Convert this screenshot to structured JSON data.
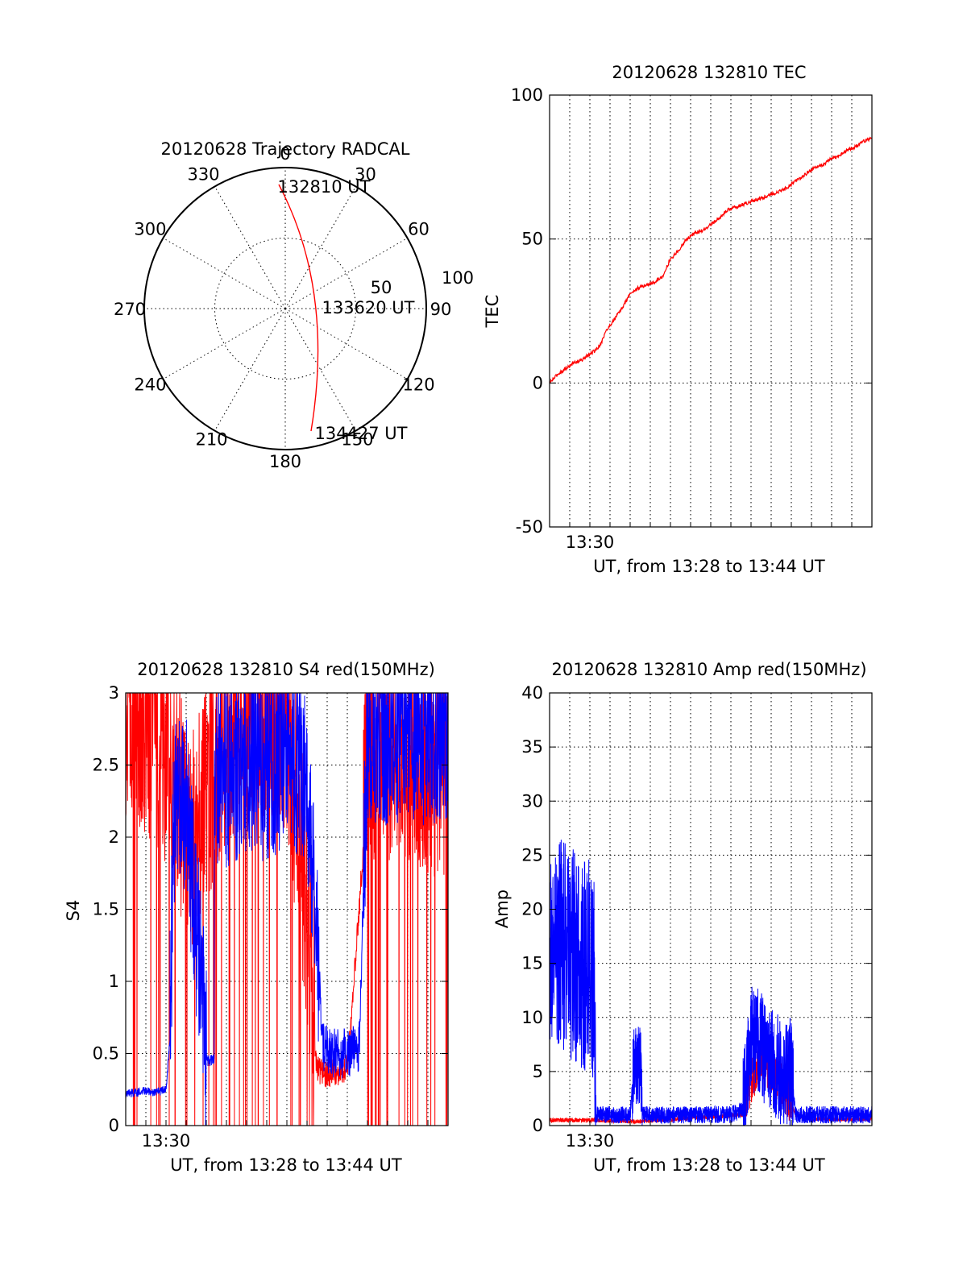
{
  "colors": {
    "red": "#ff0000",
    "blue": "#0000ff",
    "axis": "#000000",
    "grid": "#000000",
    "background": "#ffffff"
  },
  "chart_data": [
    {
      "id": "polar",
      "type": "scatter",
      "title": "20120628 Trajectory RADCAL",
      "projection": "polar",
      "azimuth_labels": [
        "0",
        "30",
        "60",
        "90",
        "120",
        "150",
        "180",
        "210",
        "240",
        "270",
        "300",
        "330"
      ],
      "radial_labels": [
        "50",
        "100"
      ],
      "radial_max": 100,
      "grid": true,
      "series": [
        {
          "color": "red",
          "points_az_el": [
            [
              352,
              82
            ],
            [
              356,
              76
            ],
            [
              2,
              68
            ],
            [
              8,
              60
            ],
            [
              15,
              52
            ],
            [
              24,
              44
            ],
            [
              36,
              38
            ],
            [
              52,
              33
            ],
            [
              70,
              30
            ],
            [
              88,
              30
            ],
            [
              106,
              33
            ],
            [
              120,
              38
            ],
            [
              132,
              44
            ],
            [
              142,
              52
            ],
            [
              150,
              60
            ],
            [
              156,
              67
            ],
            [
              161,
              73
            ],
            [
              164,
              78
            ]
          ]
        }
      ],
      "annotations": [
        {
          "text": "132810 UT",
          "az": 352,
          "el": 82
        },
        {
          "text": "133620 UT",
          "az": 88,
          "el": 30
        },
        {
          "text": "134427 UT",
          "az": 164,
          "el": 78
        }
      ]
    },
    {
      "id": "tec",
      "type": "line",
      "title": "20120628 132810 TEC",
      "xlabel": "UT, from 13:28 to 13:44 UT",
      "ylabel": "TEC",
      "xlim": [
        0,
        16
      ],
      "ylim": [
        -50,
        100
      ],
      "yticks": [
        -50,
        0,
        50,
        100
      ],
      "xtick_labels": [
        {
          "x": 2,
          "label": "13:30"
        }
      ],
      "grid": true,
      "series": [
        {
          "color": "red",
          "x": [
            0,
            0.4,
            0.8,
            1.2,
            1.6,
            2.0,
            2.2,
            2.5,
            2.8,
            3.2,
            3.6,
            4.0,
            4.4,
            4.8,
            5.2,
            5.6,
            6.0,
            6.4,
            6.8,
            7.2,
            7.6,
            8.0,
            8.4,
            8.8,
            9.2,
            9.6,
            10.0,
            10.4,
            10.8,
            11.2,
            11.6,
            12.0,
            12.4,
            12.8,
            13.2,
            13.6,
            14.0,
            14.4,
            14.8,
            15.2,
            15.6,
            16.0
          ],
          "y": [
            0,
            3,
            5,
            7,
            8,
            10,
            11,
            13,
            18,
            22,
            26,
            31,
            33,
            34,
            35,
            37,
            43,
            46,
            50,
            52,
            53,
            55,
            57,
            60,
            61,
            62,
            63,
            64,
            65,
            66,
            67,
            69,
            71,
            73,
            75,
            76,
            78,
            79,
            81,
            82,
            84,
            85
          ]
        }
      ]
    },
    {
      "id": "s4",
      "type": "line",
      "title": "20120628 132810 S4 red(150MHz)",
      "xlabel": "UT, from 13:28 to 13:44 UT",
      "ylabel": "S4",
      "xlim": [
        0,
        16
      ],
      "ylim": [
        0,
        3
      ],
      "yticks": [
        0,
        0.5,
        1,
        1.5,
        2,
        2.5,
        3
      ],
      "ytick_labels": [
        "0",
        "0.5",
        "1",
        "1.5",
        "2",
        "2.5",
        "3"
      ],
      "xtick_labels": [
        {
          "x": 2,
          "label": "13:30"
        }
      ],
      "grid": true,
      "series": [
        {
          "color": "red",
          "x": [
            0,
            1.0,
            2.0,
            2.5,
            3.0,
            4.0,
            5.0,
            6.0,
            7.0,
            8.0,
            9.0,
            9.5,
            10.0,
            11.0,
            12.0,
            13.0,
            14.0,
            15.0,
            16.0
          ],
          "y": [
            2.6,
            2.5,
            2.3,
            2.2,
            1.6,
            2.0,
            2.4,
            2.6,
            2.6,
            2.5,
            1.2,
            0.4,
            0.35,
            0.4,
            2.3,
            2.3,
            2.2,
            2.2,
            2.2
          ]
        },
        {
          "color": "blue",
          "x": [
            0,
            0.5,
            1.0,
            1.5,
            2.0,
            2.2,
            2.4,
            3.0,
            4.0,
            4.5,
            5.0,
            6.0,
            7.0,
            8.0,
            9.0,
            9.8,
            10.2,
            11.0,
            11.6,
            12.0,
            13.0,
            14.0,
            15.0,
            16.0
          ],
          "y": [
            0.22,
            0.23,
            0.24,
            0.23,
            0.25,
            0.6,
            2.0,
            2.1,
            0.45,
            2.3,
            2.3,
            2.4,
            2.3,
            2.5,
            2.3,
            0.55,
            0.5,
            0.5,
            0.55,
            2.6,
            2.6,
            2.6,
            2.6,
            2.6
          ]
        }
      ]
    },
    {
      "id": "amp",
      "type": "line",
      "title": "20120628 132810 Amp red(150MHz)",
      "xlabel": "UT, from 13:28 to 13:44 UT",
      "ylabel": "Amp",
      "xlim": [
        0,
        16
      ],
      "ylim": [
        0,
        40
      ],
      "yticks": [
        0,
        5,
        10,
        15,
        20,
        25,
        30,
        35,
        40
      ],
      "xtick_labels": [
        {
          "x": 2,
          "label": "13:30"
        }
      ],
      "grid": true,
      "series": [
        {
          "color": "red",
          "x": [
            0,
            1.0,
            2.0,
            2.2,
            4.0,
            4.5,
            9.6,
            10.0,
            10.5,
            11.0,
            11.5,
            12.0,
            12.2,
            13.0,
            16.0
          ],
          "y": [
            0.5,
            0.5,
            0.5,
            0.5,
            0.4,
            0.4,
            1.0,
            4.0,
            6.0,
            5.0,
            4.0,
            2.0,
            1.0,
            0.6,
            0.6
          ]
        },
        {
          "color": "blue",
          "x": [
            0,
            0.5,
            1.0,
            1.5,
            2.0,
            2.2,
            2.3,
            3.0,
            4.0,
            4.2,
            4.5,
            4.6,
            5.0,
            6.0,
            7.0,
            8.0,
            9.0,
            9.6,
            10.0,
            10.5,
            11.0,
            11.5,
            12.0,
            12.2,
            13.0,
            14.0,
            15.0,
            16.0
          ],
          "y": [
            16,
            17,
            16,
            15,
            15,
            14,
            1.0,
            1.0,
            1.0,
            6.0,
            6.0,
            1.0,
            1.0,
            1.0,
            1.0,
            1.0,
            1.0,
            1.5,
            8.0,
            7.5,
            6.0,
            5.0,
            5.0,
            1.0,
            1.0,
            1.0,
            1.0,
            1.0
          ]
        }
      ]
    }
  ]
}
